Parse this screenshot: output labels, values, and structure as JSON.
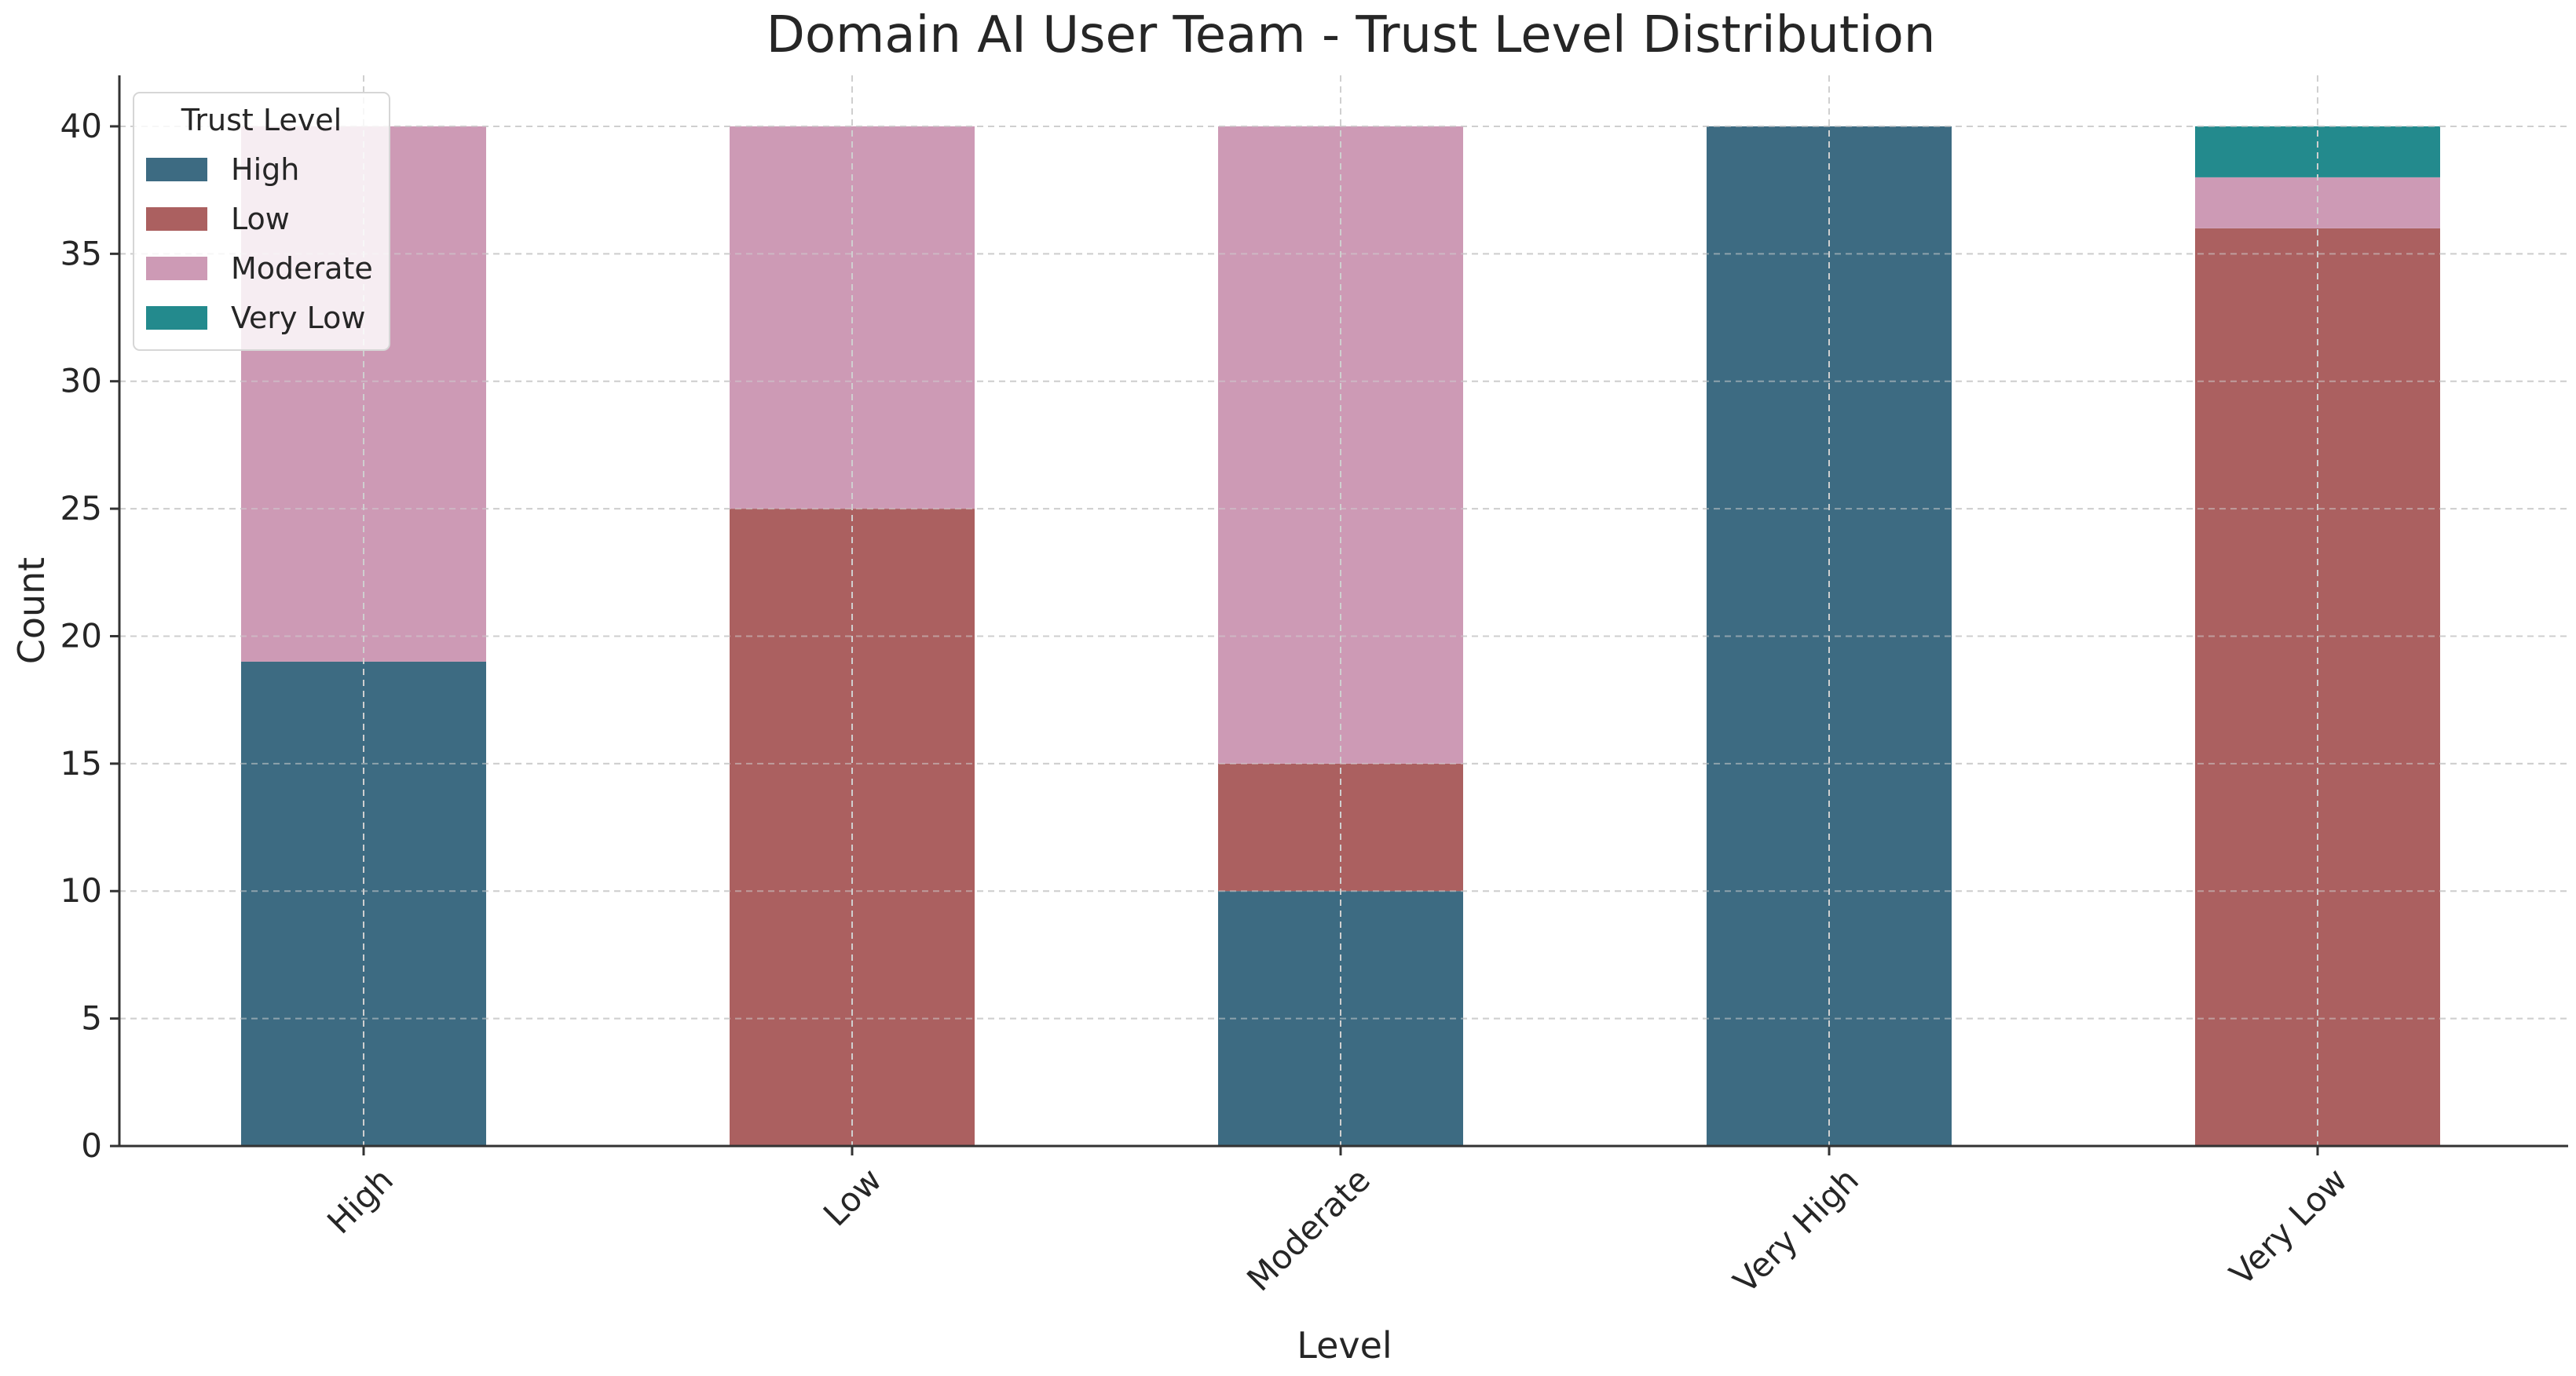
{
  "chart_data": {
    "type": "bar",
    "stacked": true,
    "title": "Domain AI User Team - Trust Level Distribution",
    "xlabel": "Level",
    "ylabel": "Count",
    "categories": [
      "High",
      "Low",
      "Moderate",
      "Very High",
      "Very Low"
    ],
    "series": [
      {
        "name": "High",
        "color": "#3d6b82",
        "values": [
          19,
          0,
          10,
          40,
          0
        ]
      },
      {
        "name": "Low",
        "color": "#ab6060",
        "values": [
          0,
          25,
          5,
          0,
          36
        ]
      },
      {
        "name": "Moderate",
        "color": "#cd9ab5",
        "values": [
          21,
          15,
          25,
          0,
          2
        ]
      },
      {
        "name": "Very Low",
        "color": "#238a8d",
        "values": [
          0,
          0,
          0,
          0,
          2
        ]
      }
    ],
    "ylim": [
      0,
      42
    ],
    "yticks": [
      0,
      5,
      10,
      15,
      20,
      25,
      30,
      35,
      40
    ],
    "grid": true,
    "legend": {
      "title": "Trust Level",
      "position": "top-left"
    }
  }
}
